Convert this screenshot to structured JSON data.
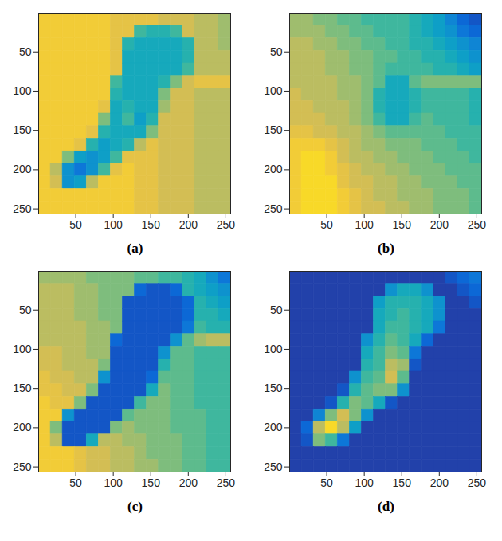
{
  "chart_data": [
    {
      "type": "heatmap",
      "title": "(a)",
      "xlim": [
        0.5,
        256.5
      ],
      "ylim": [
        0.5,
        256.5
      ],
      "xticks": [
        50,
        100,
        150,
        200,
        250
      ],
      "yticks": [
        50,
        100,
        150,
        200,
        250
      ],
      "zlim": [
        0,
        1
      ],
      "bins": [
        0.5,
        16.5,
        32.5,
        48.5,
        64.5,
        80.5,
        96.5,
        112.5,
        128.5,
        144.5,
        160.5,
        176.5,
        192.5,
        208.5,
        224.5,
        240.5,
        256.5
      ],
      "cells": [
        [
          0.85,
          0.85,
          0.85,
          0.85,
          0.85,
          0.85,
          0.8,
          0.8,
          0.8,
          0.8,
          0.75,
          0.75,
          0.75,
          0.7,
          0.7,
          0.65
        ],
        [
          0.85,
          0.85,
          0.85,
          0.85,
          0.85,
          0.85,
          0.8,
          0.8,
          0.5,
          0.45,
          0.45,
          0.5,
          0.75,
          0.7,
          0.7,
          0.65
        ],
        [
          0.85,
          0.85,
          0.85,
          0.85,
          0.85,
          0.85,
          0.8,
          0.45,
          0.4,
          0.4,
          0.4,
          0.4,
          0.45,
          0.7,
          0.7,
          0.65
        ],
        [
          0.85,
          0.85,
          0.85,
          0.85,
          0.85,
          0.85,
          0.8,
          0.4,
          0.4,
          0.4,
          0.4,
          0.4,
          0.45,
          0.7,
          0.7,
          0.7
        ],
        [
          0.85,
          0.85,
          0.85,
          0.85,
          0.85,
          0.85,
          0.8,
          0.4,
          0.4,
          0.4,
          0.4,
          0.4,
          0.5,
          0.7,
          0.7,
          0.7
        ],
        [
          0.85,
          0.85,
          0.85,
          0.85,
          0.85,
          0.85,
          0.5,
          0.4,
          0.4,
          0.4,
          0.45,
          0.6,
          0.75,
          0.8,
          0.8,
          0.8
        ],
        [
          0.85,
          0.85,
          0.85,
          0.85,
          0.85,
          0.85,
          0.45,
          0.4,
          0.4,
          0.4,
          0.6,
          0.75,
          0.75,
          0.7,
          0.7,
          0.7
        ],
        [
          0.85,
          0.85,
          0.85,
          0.85,
          0.85,
          0.8,
          0.4,
          0.45,
          0.4,
          0.4,
          0.65,
          0.75,
          0.75,
          0.7,
          0.7,
          0.7
        ],
        [
          0.85,
          0.85,
          0.85,
          0.85,
          0.85,
          0.6,
          0.4,
          0.5,
          0.35,
          0.45,
          0.75,
          0.75,
          0.75,
          0.7,
          0.7,
          0.7
        ],
        [
          0.85,
          0.85,
          0.85,
          0.85,
          0.8,
          0.45,
          0.4,
          0.4,
          0.4,
          0.6,
          0.75,
          0.75,
          0.75,
          0.7,
          0.7,
          0.7
        ],
        [
          0.85,
          0.85,
          0.85,
          0.8,
          0.45,
          0.35,
          0.4,
          0.45,
          0.7,
          0.8,
          0.75,
          0.75,
          0.75,
          0.7,
          0.7,
          0.7
        ],
        [
          0.85,
          0.85,
          0.6,
          0.35,
          0.3,
          0.35,
          0.5,
          0.8,
          0.8,
          0.8,
          0.75,
          0.75,
          0.75,
          0.7,
          0.7,
          0.7
        ],
        [
          0.85,
          0.7,
          0.3,
          0.2,
          0.3,
          0.5,
          0.8,
          0.85,
          0.8,
          0.8,
          0.75,
          0.75,
          0.75,
          0.7,
          0.7,
          0.7
        ],
        [
          0.85,
          0.75,
          0.3,
          0.35,
          0.7,
          0.85,
          0.85,
          0.85,
          0.8,
          0.8,
          0.75,
          0.75,
          0.75,
          0.7,
          0.7,
          0.7
        ],
        [
          0.85,
          0.85,
          0.85,
          0.85,
          0.85,
          0.85,
          0.85,
          0.85,
          0.8,
          0.8,
          0.75,
          0.75,
          0.75,
          0.7,
          0.7,
          0.7
        ],
        [
          0.85,
          0.85,
          0.85,
          0.85,
          0.85,
          0.85,
          0.85,
          0.85,
          0.8,
          0.8,
          0.75,
          0.75,
          0.75,
          0.7,
          0.7,
          0.7
        ]
      ]
    },
    {
      "type": "heatmap",
      "title": "(b)",
      "xlim": [
        0.5,
        256.5
      ],
      "ylim": [
        0.5,
        256.5
      ],
      "xticks": [
        50,
        100,
        150,
        200,
        250
      ],
      "yticks": [
        50,
        100,
        150,
        200,
        250
      ],
      "zlim": [
        0,
        1
      ],
      "bins": [
        0.5,
        16.5,
        32.5,
        48.5,
        64.5,
        80.5,
        96.5,
        112.5,
        128.5,
        144.5,
        160.5,
        176.5,
        192.5,
        208.5,
        224.5,
        240.5,
        256.5
      ],
      "cells": [
        [
          0.65,
          0.65,
          0.6,
          0.6,
          0.55,
          0.55,
          0.5,
          0.5,
          0.5,
          0.5,
          0.45,
          0.4,
          0.35,
          0.25,
          0.15,
          0.1
        ],
        [
          0.65,
          0.65,
          0.65,
          0.6,
          0.6,
          0.55,
          0.55,
          0.5,
          0.5,
          0.5,
          0.45,
          0.4,
          0.35,
          0.3,
          0.2,
          0.15
        ],
        [
          0.7,
          0.7,
          0.65,
          0.65,
          0.6,
          0.6,
          0.55,
          0.55,
          0.5,
          0.5,
          0.45,
          0.45,
          0.4,
          0.35,
          0.3,
          0.25
        ],
        [
          0.7,
          0.7,
          0.7,
          0.65,
          0.65,
          0.6,
          0.6,
          0.55,
          0.55,
          0.5,
          0.5,
          0.45,
          0.45,
          0.4,
          0.35,
          0.3
        ],
        [
          0.7,
          0.7,
          0.7,
          0.65,
          0.65,
          0.6,
          0.6,
          0.55,
          0.5,
          0.5,
          0.5,
          0.5,
          0.45,
          0.45,
          0.4,
          0.35
        ],
        [
          0.7,
          0.7,
          0.7,
          0.7,
          0.65,
          0.65,
          0.6,
          0.55,
          0.4,
          0.4,
          0.55,
          0.6,
          0.6,
          0.6,
          0.6,
          0.6
        ],
        [
          0.75,
          0.7,
          0.7,
          0.7,
          0.65,
          0.65,
          0.6,
          0.45,
          0.4,
          0.4,
          0.45,
          0.5,
          0.5,
          0.5,
          0.5,
          0.45
        ],
        [
          0.75,
          0.75,
          0.7,
          0.7,
          0.7,
          0.65,
          0.6,
          0.45,
          0.4,
          0.4,
          0.45,
          0.5,
          0.5,
          0.5,
          0.5,
          0.45
        ],
        [
          0.75,
          0.75,
          0.75,
          0.7,
          0.7,
          0.65,
          0.6,
          0.5,
          0.4,
          0.4,
          0.5,
          0.55,
          0.5,
          0.5,
          0.5,
          0.45
        ],
        [
          0.8,
          0.8,
          0.75,
          0.75,
          0.7,
          0.7,
          0.65,
          0.6,
          0.55,
          0.55,
          0.55,
          0.55,
          0.55,
          0.5,
          0.5,
          0.5
        ],
        [
          0.85,
          0.85,
          0.85,
          0.8,
          0.75,
          0.7,
          0.65,
          0.65,
          0.6,
          0.6,
          0.6,
          0.55,
          0.55,
          0.55,
          0.5,
          0.5
        ],
        [
          0.85,
          0.9,
          0.9,
          0.85,
          0.75,
          0.7,
          0.7,
          0.65,
          0.65,
          0.6,
          0.6,
          0.6,
          0.55,
          0.55,
          0.55,
          0.5
        ],
        [
          0.85,
          0.9,
          0.9,
          0.85,
          0.8,
          0.75,
          0.7,
          0.7,
          0.65,
          0.65,
          0.6,
          0.6,
          0.6,
          0.55,
          0.55,
          0.55
        ],
        [
          0.85,
          0.9,
          0.9,
          0.9,
          0.8,
          0.75,
          0.75,
          0.7,
          0.7,
          0.65,
          0.65,
          0.6,
          0.6,
          0.6,
          0.55,
          0.55
        ],
        [
          0.85,
          0.9,
          0.9,
          0.9,
          0.85,
          0.8,
          0.75,
          0.7,
          0.7,
          0.65,
          0.65,
          0.65,
          0.6,
          0.6,
          0.6,
          0.55
        ],
        [
          0.85,
          0.9,
          0.9,
          0.9,
          0.85,
          0.8,
          0.75,
          0.75,
          0.7,
          0.7,
          0.65,
          0.65,
          0.6,
          0.6,
          0.6,
          0.55
        ]
      ]
    },
    {
      "type": "heatmap",
      "title": "(c)",
      "xlim": [
        0.5,
        256.5
      ],
      "ylim": [
        0.5,
        256.5
      ],
      "xticks": [
        50,
        100,
        150,
        200,
        250
      ],
      "yticks": [
        50,
        100,
        150,
        200,
        250
      ],
      "zlim": [
        0,
        1
      ],
      "bins": [
        0.5,
        16.5,
        32.5,
        48.5,
        64.5,
        80.5,
        96.5,
        112.5,
        128.5,
        144.5,
        160.5,
        176.5,
        192.5,
        208.5,
        224.5,
        240.5,
        256.5
      ],
      "cells": [
        [
          0.65,
          0.65,
          0.65,
          0.65,
          0.6,
          0.6,
          0.6,
          0.6,
          0.55,
          0.55,
          0.5,
          0.5,
          0.45,
          0.4,
          0.3,
          0.2
        ],
        [
          0.7,
          0.7,
          0.7,
          0.65,
          0.65,
          0.6,
          0.6,
          0.6,
          0.15,
          0.1,
          0.1,
          0.15,
          0.45,
          0.4,
          0.35,
          0.3
        ],
        [
          0.7,
          0.7,
          0.7,
          0.65,
          0.65,
          0.6,
          0.6,
          0.1,
          0.1,
          0.1,
          0.1,
          0.1,
          0.15,
          0.45,
          0.4,
          0.35
        ],
        [
          0.7,
          0.7,
          0.7,
          0.65,
          0.65,
          0.6,
          0.6,
          0.1,
          0.1,
          0.1,
          0.1,
          0.1,
          0.15,
          0.45,
          0.45,
          0.4
        ],
        [
          0.7,
          0.7,
          0.7,
          0.7,
          0.65,
          0.65,
          0.6,
          0.1,
          0.1,
          0.1,
          0.1,
          0.1,
          0.2,
          0.5,
          0.45,
          0.45
        ],
        [
          0.7,
          0.7,
          0.7,
          0.7,
          0.65,
          0.65,
          0.15,
          0.1,
          0.1,
          0.1,
          0.1,
          0.3,
          0.55,
          0.65,
          0.7,
          0.7
        ],
        [
          0.75,
          0.75,
          0.7,
          0.7,
          0.65,
          0.65,
          0.1,
          0.1,
          0.1,
          0.1,
          0.3,
          0.55,
          0.55,
          0.5,
          0.5,
          0.5
        ],
        [
          0.75,
          0.75,
          0.7,
          0.7,
          0.7,
          0.6,
          0.1,
          0.1,
          0.1,
          0.1,
          0.45,
          0.55,
          0.55,
          0.5,
          0.5,
          0.5
        ],
        [
          0.8,
          0.75,
          0.75,
          0.7,
          0.7,
          0.3,
          0.1,
          0.1,
          0.1,
          0.15,
          0.55,
          0.55,
          0.55,
          0.5,
          0.5,
          0.5
        ],
        [
          0.8,
          0.8,
          0.75,
          0.75,
          0.6,
          0.1,
          0.1,
          0.1,
          0.1,
          0.4,
          0.6,
          0.55,
          0.55,
          0.5,
          0.5,
          0.5
        ],
        [
          0.85,
          0.8,
          0.8,
          0.6,
          0.1,
          0.1,
          0.1,
          0.1,
          0.5,
          0.6,
          0.6,
          0.55,
          0.55,
          0.5,
          0.5,
          0.5
        ],
        [
          0.85,
          0.85,
          0.3,
          0.1,
          0.1,
          0.1,
          0.1,
          0.55,
          0.6,
          0.6,
          0.6,
          0.55,
          0.55,
          0.55,
          0.5,
          0.5
        ],
        [
          0.85,
          0.6,
          0.1,
          0.1,
          0.1,
          0.1,
          0.6,
          0.65,
          0.6,
          0.6,
          0.6,
          0.55,
          0.55,
          0.55,
          0.5,
          0.5
        ],
        [
          0.85,
          0.7,
          0.1,
          0.1,
          0.4,
          0.7,
          0.7,
          0.65,
          0.65,
          0.6,
          0.6,
          0.6,
          0.55,
          0.55,
          0.5,
          0.5
        ],
        [
          0.85,
          0.85,
          0.85,
          0.8,
          0.75,
          0.75,
          0.7,
          0.7,
          0.65,
          0.6,
          0.6,
          0.6,
          0.55,
          0.55,
          0.5,
          0.5
        ],
        [
          0.85,
          0.85,
          0.85,
          0.8,
          0.75,
          0.75,
          0.7,
          0.7,
          0.65,
          0.65,
          0.6,
          0.6,
          0.55,
          0.55,
          0.5,
          0.5
        ]
      ]
    },
    {
      "type": "heatmap",
      "title": "(d)",
      "xlim": [
        0.5,
        256.5
      ],
      "ylim": [
        0.5,
        256.5
      ],
      "xticks": [
        50,
        100,
        150,
        200,
        250
      ],
      "yticks": [
        50,
        100,
        150,
        200,
        250
      ],
      "zlim": [
        0,
        1
      ],
      "bins": [
        0.5,
        16.5,
        32.5,
        48.5,
        64.5,
        80.5,
        96.5,
        112.5,
        128.5,
        144.5,
        160.5,
        176.5,
        192.5,
        208.5,
        224.5,
        240.5,
        256.5
      ],
      "cells": [
        [
          0.05,
          0.05,
          0.05,
          0.05,
          0.05,
          0.05,
          0.05,
          0.05,
          0.05,
          0.05,
          0.05,
          0.05,
          0.05,
          0.1,
          0.15,
          0.2
        ],
        [
          0.05,
          0.05,
          0.05,
          0.05,
          0.05,
          0.05,
          0.05,
          0.05,
          0.3,
          0.4,
          0.4,
          0.3,
          0.05,
          0.05,
          0.1,
          0.15
        ],
        [
          0.05,
          0.05,
          0.05,
          0.05,
          0.05,
          0.05,
          0.05,
          0.35,
          0.45,
          0.45,
          0.45,
          0.4,
          0.3,
          0.05,
          0.05,
          0.1
        ],
        [
          0.05,
          0.05,
          0.05,
          0.05,
          0.05,
          0.05,
          0.05,
          0.4,
          0.45,
          0.5,
          0.45,
          0.4,
          0.3,
          0.05,
          0.05,
          0.05
        ],
        [
          0.05,
          0.05,
          0.05,
          0.05,
          0.05,
          0.05,
          0.05,
          0.4,
          0.5,
          0.5,
          0.45,
          0.4,
          0.2,
          0.05,
          0.05,
          0.05
        ],
        [
          0.05,
          0.05,
          0.05,
          0.05,
          0.05,
          0.05,
          0.3,
          0.45,
          0.55,
          0.5,
          0.4,
          0.15,
          0.05,
          0.05,
          0.05,
          0.05
        ],
        [
          0.05,
          0.05,
          0.05,
          0.05,
          0.05,
          0.05,
          0.4,
          0.5,
          0.6,
          0.55,
          0.2,
          0.05,
          0.05,
          0.05,
          0.05,
          0.05
        ],
        [
          0.05,
          0.05,
          0.05,
          0.05,
          0.05,
          0.05,
          0.45,
          0.5,
          0.7,
          0.65,
          0.1,
          0.05,
          0.05,
          0.05,
          0.05,
          0.05
        ],
        [
          0.05,
          0.05,
          0.05,
          0.05,
          0.05,
          0.3,
          0.5,
          0.55,
          0.75,
          0.55,
          0.05,
          0.05,
          0.05,
          0.05,
          0.05,
          0.05
        ],
        [
          0.05,
          0.05,
          0.05,
          0.05,
          0.1,
          0.45,
          0.55,
          0.6,
          0.6,
          0.3,
          0.05,
          0.05,
          0.05,
          0.05,
          0.05,
          0.05
        ],
        [
          0.05,
          0.05,
          0.05,
          0.1,
          0.45,
          0.6,
          0.55,
          0.4,
          0.1,
          0.05,
          0.05,
          0.05,
          0.05,
          0.05,
          0.05,
          0.05
        ],
        [
          0.05,
          0.05,
          0.25,
          0.6,
          0.75,
          0.6,
          0.3,
          0.05,
          0.05,
          0.05,
          0.05,
          0.05,
          0.05,
          0.05,
          0.05,
          0.05
        ],
        [
          0.05,
          0.15,
          0.7,
          0.9,
          0.7,
          0.35,
          0.05,
          0.05,
          0.05,
          0.05,
          0.05,
          0.05,
          0.05,
          0.05,
          0.05,
          0.05
        ],
        [
          0.05,
          0.1,
          0.6,
          0.5,
          0.2,
          0.05,
          0.05,
          0.05,
          0.05,
          0.05,
          0.05,
          0.05,
          0.05,
          0.05,
          0.05,
          0.05
        ],
        [
          0.05,
          0.05,
          0.05,
          0.05,
          0.05,
          0.05,
          0.05,
          0.05,
          0.05,
          0.05,
          0.05,
          0.05,
          0.05,
          0.05,
          0.05,
          0.05
        ],
        [
          0.05,
          0.05,
          0.05,
          0.05,
          0.05,
          0.05,
          0.05,
          0.05,
          0.05,
          0.05,
          0.05,
          0.05,
          0.05,
          0.05,
          0.05,
          0.05
        ]
      ]
    }
  ]
}
